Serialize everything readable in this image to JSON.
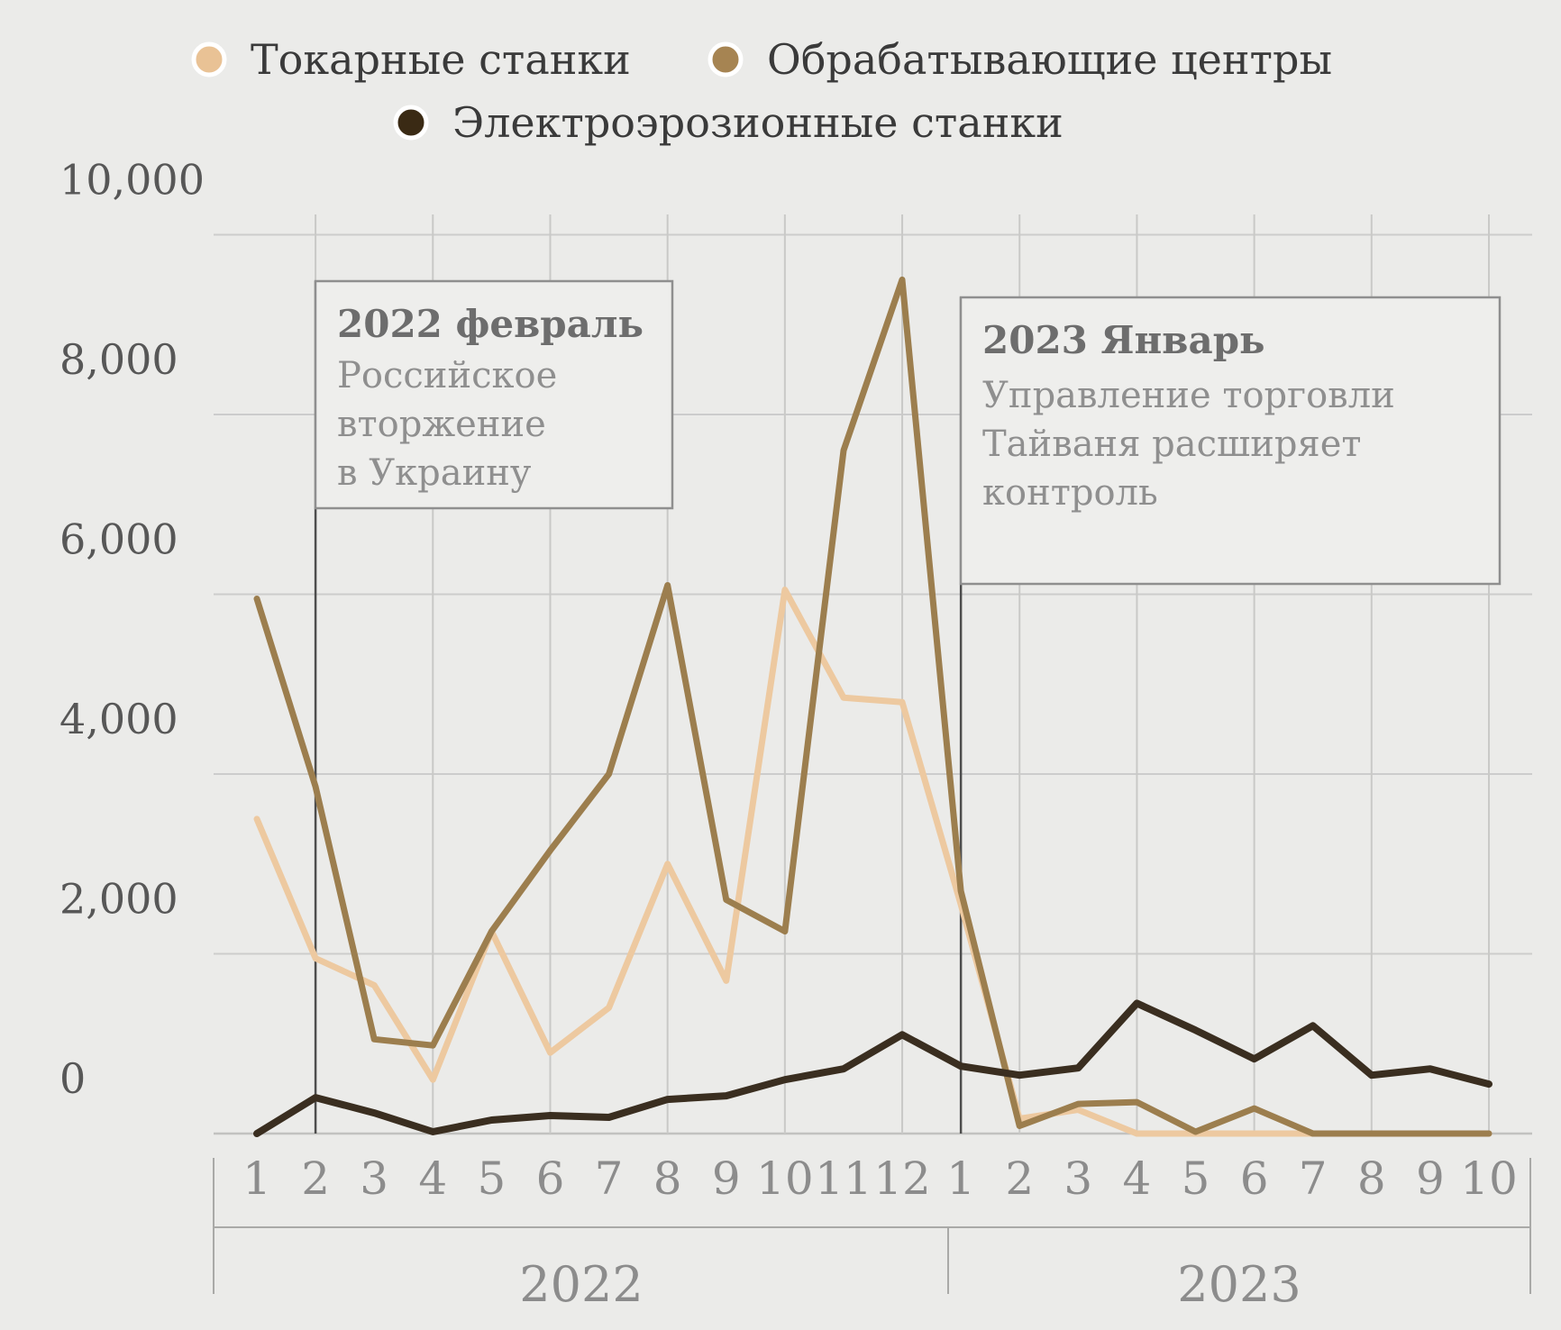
{
  "legend": {
    "items": [
      {
        "label": "Токарные станки",
        "color": "#e9c295"
      },
      {
        "label": "Обрабатывающие центры",
        "color": "#a68452"
      },
      {
        "label": "Электроэрозионные станки",
        "color": "#3a2a14"
      }
    ]
  },
  "y_axis": {
    "tick_labels": [
      "10,000",
      "8,000",
      "6,000",
      "4,000",
      "2,000",
      "0"
    ],
    "tick_values": [
      10000,
      8000,
      6000,
      4000,
      2000,
      0
    ]
  },
  "x_axis": {
    "month_labels": [
      "1",
      "2",
      "3",
      "4",
      "5",
      "6",
      "7",
      "8",
      "9",
      "10",
      "11",
      "12",
      "1",
      "2",
      "3",
      "4",
      "5",
      "6",
      "7",
      "8",
      "9",
      "10"
    ],
    "year_spans": [
      {
        "label": "2022",
        "from_month": 1,
        "to_month": 12
      },
      {
        "label": "2023",
        "from_month": 13,
        "to_month": 22
      }
    ]
  },
  "annotations": [
    {
      "month_index": 2,
      "title": "2022 февраль",
      "lines": [
        "Российское",
        "вторжение",
        "в Украину"
      ]
    },
    {
      "month_index": 13,
      "title": "2023 Январь",
      "lines": [
        "Управление торговли",
        "Тайваня расширяет",
        "контроль"
      ]
    }
  ],
  "chart_data": {
    "type": "line",
    "title": "",
    "xlabel": "",
    "ylabel": "",
    "ylim": [
      0,
      10000
    ],
    "grid": true,
    "legend_position": "top",
    "categories": [
      "2022-1",
      "2022-2",
      "2022-3",
      "2022-4",
      "2022-5",
      "2022-6",
      "2022-7",
      "2022-8",
      "2022-9",
      "2022-10",
      "2022-11",
      "2022-12",
      "2023-1",
      "2023-2",
      "2023-3",
      "2023-4",
      "2023-5",
      "2023-6",
      "2023-7",
      "2023-8",
      "2023-9",
      "2023-10"
    ],
    "series": [
      {
        "name": "Токарные станки",
        "color": "#edc9a0",
        "values": [
          3500,
          1950,
          1650,
          600,
          2250,
          900,
          1400,
          3000,
          1700,
          6050,
          4850,
          4800,
          2550,
          165,
          265,
          0,
          0,
          0,
          0,
          0,
          0,
          0
        ]
      },
      {
        "name": "Обрабатывающие центры",
        "color": "#9c7e4e",
        "values": [
          5950,
          3860,
          1050,
          980,
          2250,
          3150,
          4000,
          6100,
          2600,
          2250,
          7600,
          9500,
          2700,
          85,
          330,
          350,
          20,
          280,
          0,
          0,
          0,
          0
        ]
      },
      {
        "name": "Электроэрозионные станки",
        "color": "#3a2e20",
        "values": [
          0,
          400,
          230,
          20,
          150,
          200,
          180,
          380,
          420,
          600,
          720,
          1100,
          750,
          650,
          730,
          1450,
          1150,
          830,
          1200,
          650,
          720,
          550
        ]
      }
    ]
  }
}
